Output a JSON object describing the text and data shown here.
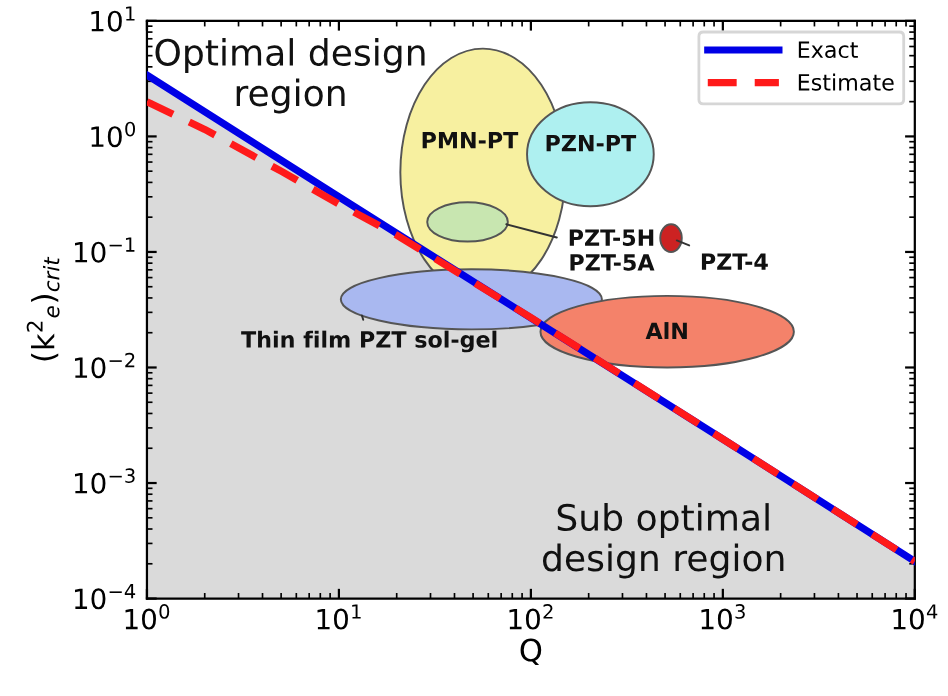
{
  "chart_data": {
    "type": "line",
    "xlabel": "Q",
    "ylabel": "(k$^{2}$$_{e}$)$_{crit}$",
    "log": "xy",
    "grid": false,
    "legend": "top right",
    "xlim": [
      1,
      10000
    ],
    "xticks": [
      {
        "value": 1,
        "label": "10$^{0}$"
      },
      {
        "value": 10,
        "label": "10$^{1}$"
      },
      {
        "value": 100,
        "label": "10$^{2}$"
      },
      {
        "value": 1000,
        "label": "10$^{3}$"
      },
      {
        "value": 10000,
        "label": "10$^{4}$"
      }
    ],
    "ylim": [
      0.0001,
      10
    ],
    "yticks": [
      {
        "value": 0.0001,
        "label": "10$^{−4}$"
      },
      {
        "value": 0.001,
        "label": "10$^{−3}$"
      },
      {
        "value": 0.01,
        "label": "10$^{−2}$"
      },
      {
        "value": 0.1,
        "label": "10$^{−1}$"
      },
      {
        "value": 1,
        "label": "10$^{0}$"
      },
      {
        "value": 10,
        "label": "10$^{1}$"
      }
    ],
    "series": [
      {
        "name": "Exact",
        "type": "area",
        "line_style": "solid",
        "color": "#0000e6",
        "x": [
          1,
          10,
          1000,
          10000
        ],
        "values": [
          3.4,
          0.3,
          0.0024,
          0.00021
        ]
      },
      {
        "name": "Estimate",
        "line_style": "dashed",
        "color": "#ff1a1a",
        "x": [
          1,
          2,
          5,
          10,
          20,
          50,
          100,
          1000,
          10000
        ],
        "values": [
          2.0,
          1.15,
          0.5,
          0.26,
          0.14,
          0.055,
          0.027,
          0.0024,
          0.00021
        ]
      }
    ],
    "annotations": [
      "Optimal design\nregion",
      "Sub optimal\ndesign region",
      "PMN-PT",
      "PZN-PT",
      "PZT-5H\nPZT-5A",
      "PZT-4",
      "Thin film PZT sol-gel",
      "AlN"
    ]
  }
}
